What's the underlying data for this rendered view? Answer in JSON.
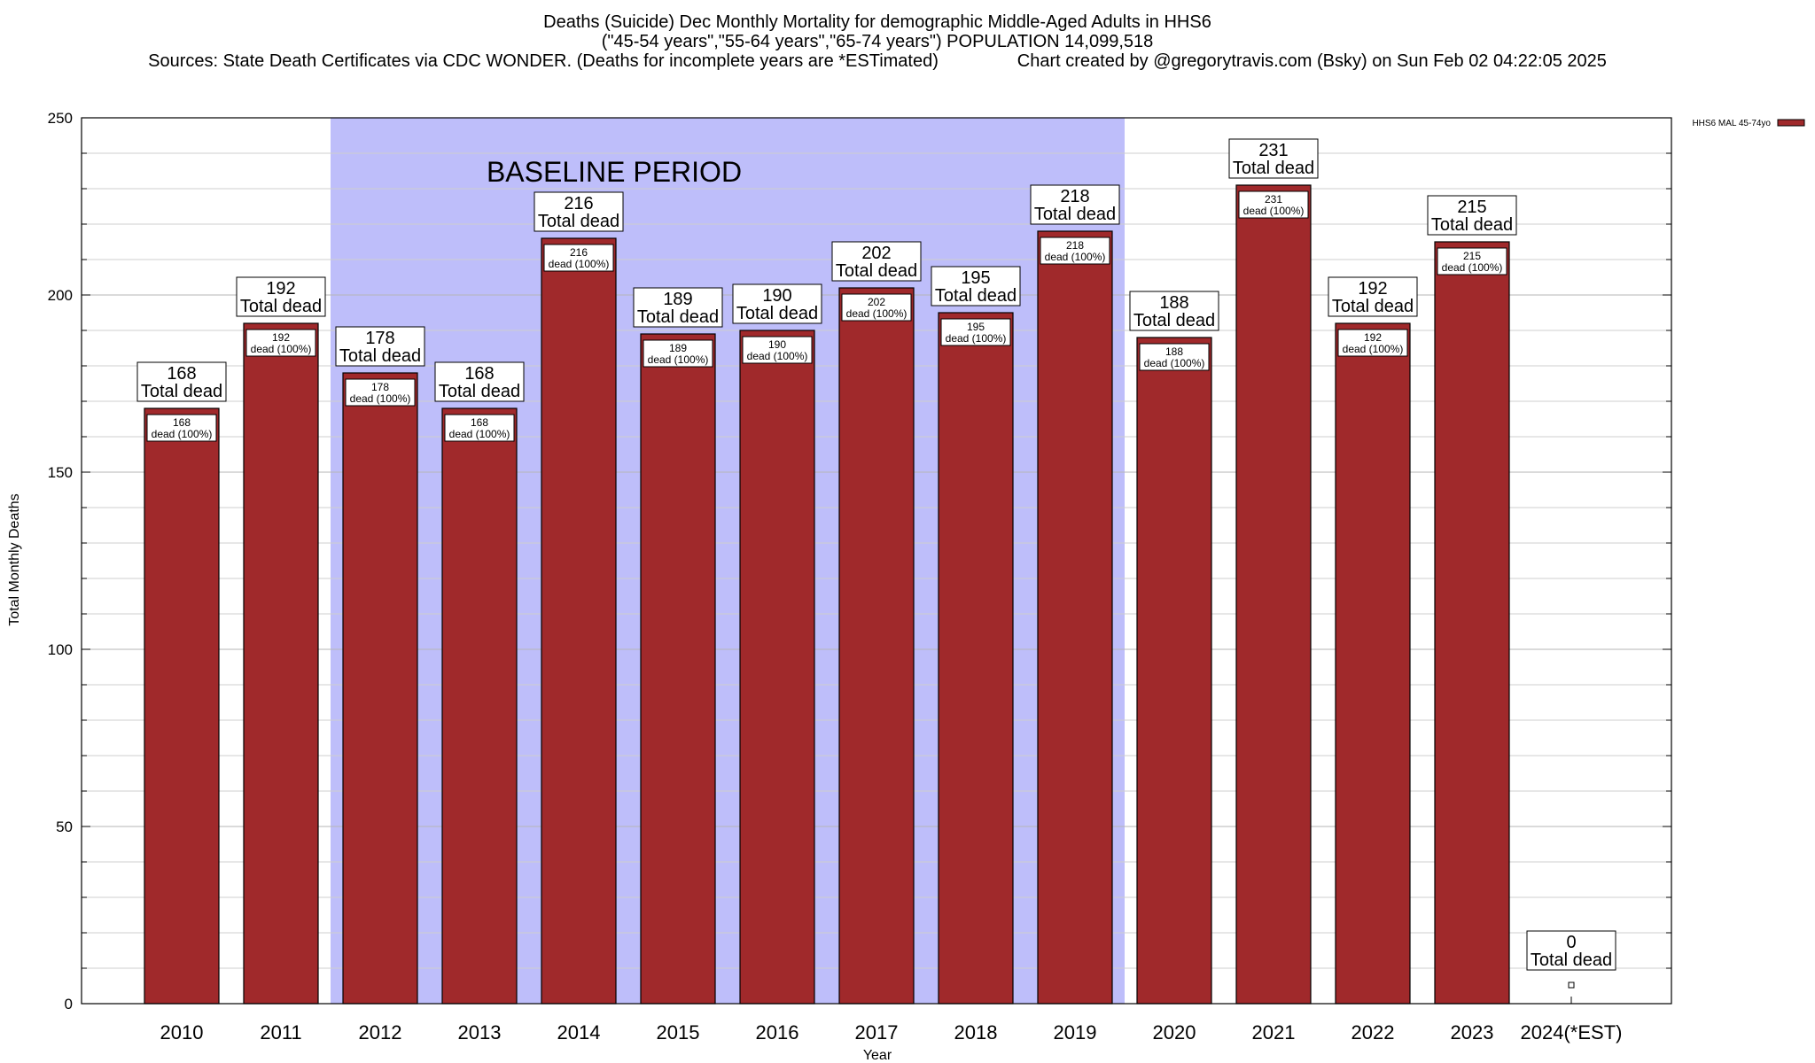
{
  "header": {
    "line1": "Deaths (Suicide) Dec Monthly Mortality for demographic Middle-Aged Adults in HHS6",
    "line2": "(\"45-54 years\",\"55-64 years\",\"65-74 years\") POPULATION 14,099,518",
    "line3": "Sources: State Death Certificates via CDC WONDER. (Deaths for incomplete years are *ESTimated)                Chart created by @gregorytravis.com (Bsky) on Sun Feb 02 04:22:05 2025"
  },
  "chart_data": {
    "type": "bar",
    "title": "Deaths (Suicide) Dec Monthly Mortality for demographic Middle-Aged Adults in HHS6",
    "xlabel": "Year",
    "ylabel": "Total Monthly Deaths",
    "ylim": [
      0,
      250
    ],
    "yticks": [
      0,
      50,
      100,
      150,
      200,
      250
    ],
    "grid": true,
    "legend_position": "top-right",
    "categories": [
      "2010",
      "2011",
      "2012",
      "2013",
      "2014",
      "2015",
      "2016",
      "2017",
      "2018",
      "2019",
      "2020",
      "2021",
      "2022",
      "2023",
      "2024(*EST)"
    ],
    "series": [
      {
        "name": "HHS6 MAL 45-74yo",
        "color": "#a0292b",
        "values": [
          168,
          192,
          178,
          168,
          216,
          189,
          190,
          202,
          195,
          218,
          188,
          231,
          192,
          215,
          0
        ]
      }
    ],
    "total_label_suffix": "Total dead",
    "inner_label_suffix": "dead (100%)",
    "annotation": {
      "text": "BASELINE PERIOD",
      "from_category": "2012",
      "to_category": "2019",
      "color": "#bebefa"
    }
  }
}
